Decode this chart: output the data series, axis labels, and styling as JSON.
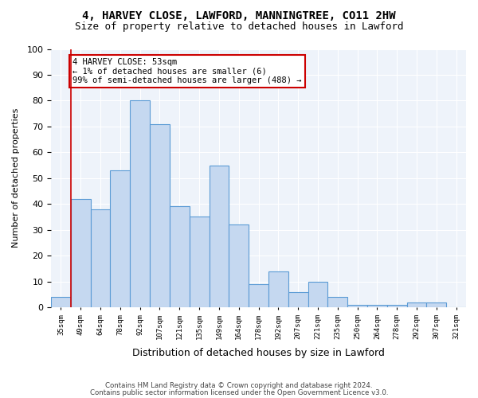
{
  "title1": "4, HARVEY CLOSE, LAWFORD, MANNINGTREE, CO11 2HW",
  "title2": "Size of property relative to detached houses in Lawford",
  "xlabel": "Distribution of detached houses by size in Lawford",
  "ylabel": "Number of detached properties",
  "footer1": "Contains HM Land Registry data © Crown copyright and database right 2024.",
  "footer2": "Contains public sector information licensed under the Open Government Licence v3.0.",
  "annotation_line1": "4 HARVEY CLOSE: 53sqm",
  "annotation_line2": "← 1% of detached houses are smaller (6)",
  "annotation_line3": "99% of semi-detached houses are larger (488) →",
  "bar_color": "#c5d8f0",
  "bar_edge_color": "#5b9bd5",
  "annotation_box_edge_color": "#cc0000",
  "vline_color": "#cc0000",
  "background_color": "#eef3fa",
  "ylim": [
    0,
    100
  ],
  "categories": [
    "35sqm",
    "49sqm",
    "64sqm",
    "78sqm",
    "92sqm",
    "107sqm",
    "121sqm",
    "135sqm",
    "149sqm",
    "164sqm",
    "178sqm",
    "192sqm",
    "207sqm",
    "221sqm",
    "235sqm",
    "250sqm",
    "264sqm",
    "278sqm",
    "292sqm",
    "307sqm",
    "321sqm"
  ],
  "values": [
    4,
    42,
    38,
    53,
    80,
    71,
    39,
    35,
    55,
    32,
    9,
    14,
    6,
    10,
    4,
    1,
    1,
    1,
    2,
    2,
    0
  ],
  "vline_x": 0.5
}
